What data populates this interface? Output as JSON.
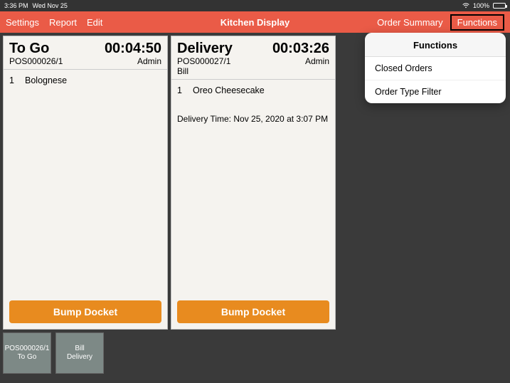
{
  "status": {
    "time": "3:36 PM",
    "date": "Wed Nov 25",
    "wifi_icon": "wifi",
    "battery_pct": "100%"
  },
  "topbar": {
    "settings": "Settings",
    "report": "Report",
    "edit": "Edit",
    "title": "Kitchen Display",
    "order_summary": "Order Summary",
    "functions": "Functions"
  },
  "tickets": [
    {
      "type": "To Go",
      "timer": "00:04:50",
      "ref": "POS000026/1",
      "user": "Admin",
      "name": "",
      "lines": [
        {
          "qty": "1",
          "item": "Bolognese"
        }
      ],
      "note": "",
      "bump": "Bump Docket"
    },
    {
      "type": "Delivery",
      "timer": "00:03:26",
      "ref": "POS000027/1",
      "user": "Admin",
      "name": "Bill",
      "lines": [
        {
          "qty": "1",
          "item": "Oreo Cheesecake"
        }
      ],
      "note": "Delivery Time: Nov 25, 2020 at 3:07 PM",
      "bump": "Bump Docket"
    }
  ],
  "footer": [
    {
      "line1": "POS000026/1",
      "line2": "To Go"
    },
    {
      "line1": "Bill",
      "line2": "Delivery"
    }
  ],
  "popover": {
    "title": "Functions",
    "items": [
      "Closed Orders",
      "Order Type Filter"
    ]
  },
  "colors": {
    "topbar": "#ea5b47",
    "ticket_bg": "#f5f3ef",
    "bump": "#e88b1f",
    "tile": "#7d8986",
    "app_bg": "#3a3a3a"
  }
}
